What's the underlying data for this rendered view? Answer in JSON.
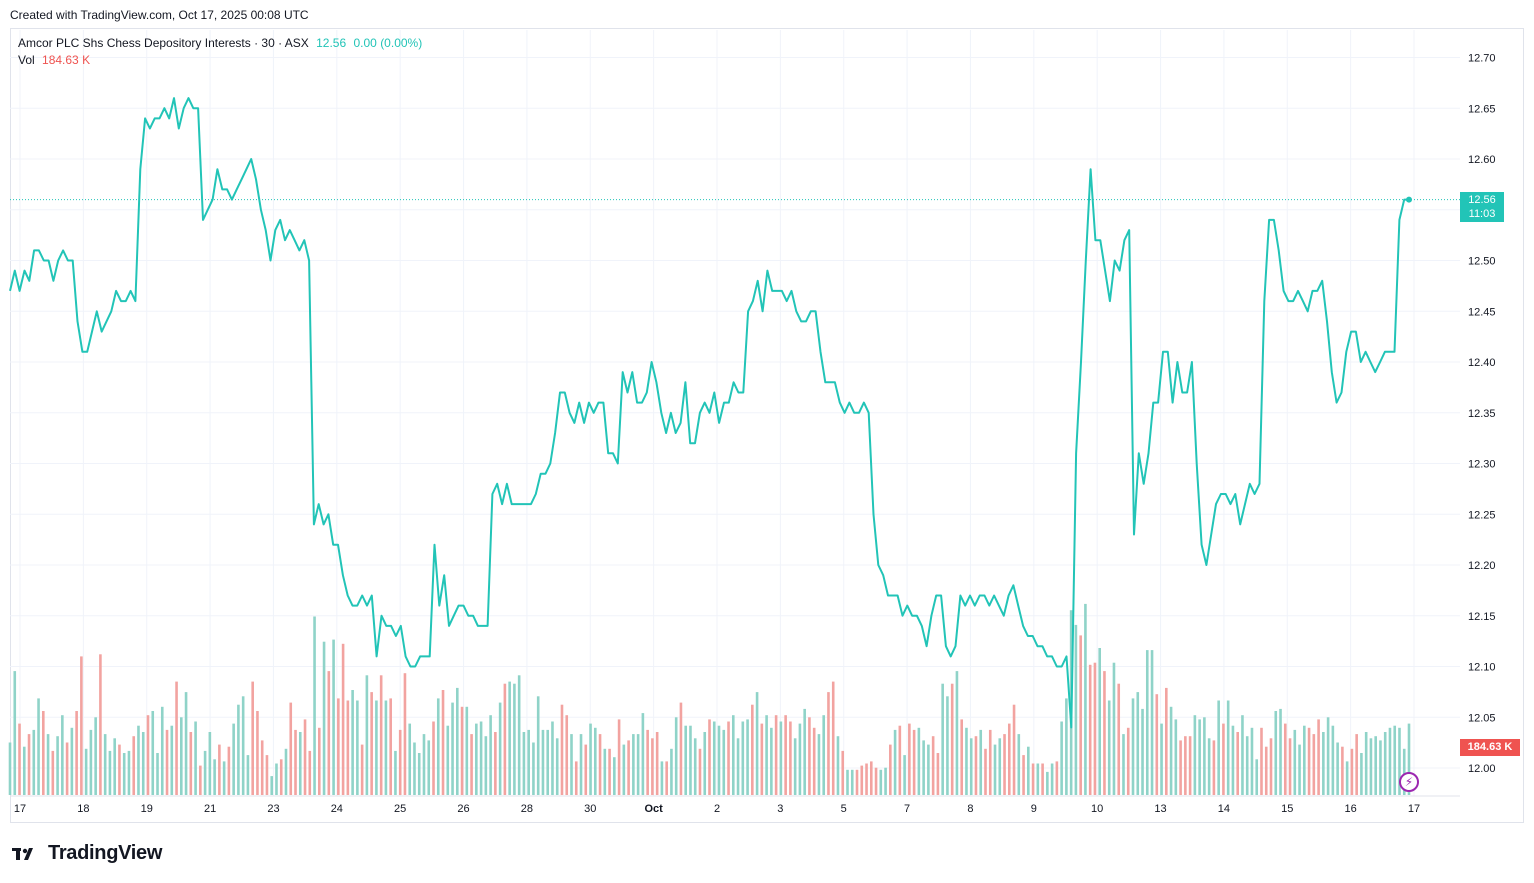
{
  "header": {
    "created_text": "Created with TradingView.com, Oct 17, 2025 00:08 UTC"
  },
  "legend": {
    "symbol": "Amcor PLC Shs Chess Depository Interests · 30 · ASX",
    "last": "12.56",
    "change": "0.00 (0.00%)",
    "vol_label": "Vol",
    "vol_value": "184.63 K"
  },
  "price_tag": {
    "price": "12.56",
    "countdown": "11:03"
  },
  "vol_tag": "184.63 K",
  "footer": {
    "brand": "TradingView"
  },
  "colors": {
    "line": "#22c4b7",
    "vol_up": "#8fd3c8",
    "vol_down": "#f2a3a0",
    "grid": "#f0f3fa",
    "text": "#131722"
  },
  "chart_data": {
    "type": "line",
    "y_axis": {
      "ticks": [
        "12.70",
        "12.65",
        "12.60",
        "12.55",
        "12.50",
        "12.45",
        "12.40",
        "12.35",
        "12.30",
        "12.25",
        "12.20",
        "12.15",
        "12.10",
        "12.05",
        "12.00"
      ],
      "ylim": [
        11.97,
        12.72
      ]
    },
    "x_axis": {
      "labels": [
        "17",
        "18",
        "19",
        "21",
        "23",
        "24",
        "25",
        "26",
        "28",
        "30",
        "Oct",
        "2",
        "3",
        "5",
        "7",
        "8",
        "9",
        "10",
        "13",
        "14",
        "15",
        "16",
        "17"
      ]
    },
    "series": [
      {
        "values": [
          12.47,
          12.49,
          12.47,
          12.49,
          12.48,
          12.51,
          12.51,
          12.5,
          12.5,
          12.48,
          12.5,
          12.51,
          12.5,
          12.5,
          12.44,
          12.41,
          12.41,
          12.43,
          12.45,
          12.43,
          12.44,
          12.45,
          12.47,
          12.46,
          12.46,
          12.47,
          12.46,
          12.59,
          12.64,
          12.63,
          12.64,
          12.64,
          12.65,
          12.64,
          12.66,
          12.63,
          12.65,
          12.66,
          12.65,
          12.65,
          12.54,
          12.55,
          12.56,
          12.59,
          12.57,
          12.57,
          12.56,
          12.57,
          12.58,
          12.59,
          12.6,
          12.58,
          12.55,
          12.53,
          12.5,
          12.53,
          12.54,
          12.52,
          12.53,
          12.52,
          12.51,
          12.52,
          12.5,
          12.24,
          12.26,
          12.24,
          12.25,
          12.22,
          12.22,
          12.19,
          12.17,
          12.16,
          12.16,
          12.17,
          12.16,
          12.17,
          12.11,
          12.15,
          12.14,
          12.14,
          12.13,
          12.14,
          12.11,
          12.1,
          12.1,
          12.11,
          12.11,
          12.11,
          12.22,
          12.16,
          12.19,
          12.14,
          12.15,
          12.16,
          12.16,
          12.15,
          12.15,
          12.14,
          12.14,
          12.14,
          12.27,
          12.28,
          12.26,
          12.28,
          12.26,
          12.26,
          12.26,
          12.26,
          12.26,
          12.27,
          12.29,
          12.29,
          12.3,
          12.33,
          12.37,
          12.37,
          12.35,
          12.34,
          12.36,
          12.34,
          12.36,
          12.35,
          12.36,
          12.36,
          12.31,
          12.31,
          12.3,
          12.39,
          12.37,
          12.39,
          12.36,
          12.36,
          12.37,
          12.4,
          12.38,
          12.35,
          12.33,
          12.35,
          12.33,
          12.34,
          12.38,
          12.32,
          12.32,
          12.35,
          12.36,
          12.35,
          12.37,
          12.34,
          12.36,
          12.36,
          12.38,
          12.37,
          12.37,
          12.45,
          12.46,
          12.48,
          12.45,
          12.49,
          12.47,
          12.47,
          12.47,
          12.46,
          12.47,
          12.45,
          12.44,
          12.44,
          12.45,
          12.45,
          12.41,
          12.38,
          12.38,
          12.38,
          12.36,
          12.35,
          12.36,
          12.35,
          12.35,
          12.36,
          12.35,
          12.25,
          12.2,
          12.19,
          12.17,
          12.17,
          12.17,
          12.15,
          12.16,
          12.15,
          12.15,
          12.14,
          12.12,
          12.15,
          12.17,
          12.17,
          12.12,
          12.11,
          12.12,
          12.17,
          12.16,
          12.17,
          12.16,
          12.17,
          12.17,
          12.16,
          12.17,
          12.16,
          12.15,
          12.17,
          12.18,
          12.16,
          12.14,
          12.13,
          12.13,
          12.12,
          12.12,
          12.11,
          12.11,
          12.1,
          12.1,
          12.11,
          12.04,
          12.31,
          12.4,
          12.5,
          12.59,
          12.52,
          12.52,
          12.49,
          12.46,
          12.5,
          12.49,
          12.52,
          12.53,
          12.23,
          12.31,
          12.28,
          12.31,
          12.36,
          12.36,
          12.41,
          12.41,
          12.36,
          12.4,
          12.37,
          12.37,
          12.4,
          12.3,
          12.22,
          12.2,
          12.23,
          12.26,
          12.27,
          12.27,
          12.26,
          12.27,
          12.24,
          12.26,
          12.28,
          12.27,
          12.28,
          12.46,
          12.54,
          12.54,
          12.51,
          12.47,
          12.46,
          12.46,
          12.47,
          12.46,
          12.45,
          12.47,
          12.47,
          12.48,
          12.44,
          12.39,
          12.36,
          12.37,
          12.41,
          12.43,
          12.43,
          12.4,
          12.41,
          12.4,
          12.39,
          12.4,
          12.41,
          12.41,
          12.41,
          12.54,
          12.56,
          12.56
        ]
      }
    ],
    "volume": {
      "values": [
        0.25,
        0.59,
        0.34,
        0.23,
        0.29,
        0.31,
        0.46,
        0.4,
        0.29,
        0.21,
        0.28,
        0.38,
        0.25,
        0.32,
        0.4,
        0.66,
        0.22,
        0.31,
        0.37,
        0.67,
        0.29,
        0.21,
        0.27,
        0.24,
        0.2,
        0.21,
        0.28,
        0.33,
        0.3,
        0.38,
        0.4,
        0.2,
        0.42,
        0.31,
        0.33,
        0.54,
        0.37,
        0.49,
        0.3,
        0.35,
        0.14,
        0.21,
        0.3,
        0.17,
        0.24,
        0.16,
        0.23,
        0.34,
        0.43,
        0.47,
        0.19,
        0.54,
        0.4,
        0.26,
        0.19,
        0.09,
        0.15,
        0.17,
        0.22,
        0.44,
        0.31,
        0.3,
        0.36,
        0.21,
        0.85,
        0.32,
        0.73,
        0.59,
        0.74,
        0.46,
        0.72,
        0.45,
        0.5,
        0.45,
        0.24,
        0.57,
        0.49,
        0.45,
        0.57,
        0.45,
        0.46,
        0.21,
        0.31,
        0.58,
        0.34,
        0.25,
        0.2,
        0.29,
        0.26,
        0.35,
        0.46,
        0.5,
        0.33,
        0.44,
        0.51,
        0.42,
        0.42,
        0.29,
        0.34,
        0.35,
        0.28,
        0.38,
        0.3,
        0.44,
        0.53,
        0.54,
        0.53,
        0.57,
        0.3,
        0.31,
        0.25,
        0.47,
        0.31,
        0.31,
        0.35,
        0.27,
        0.43,
        0.38,
        0.29,
        0.16,
        0.29,
        0.24,
        0.34,
        0.32,
        0.29,
        0.22,
        0.22,
        0.18,
        0.36,
        0.24,
        0.26,
        0.29,
        0.29,
        0.39,
        0.31,
        0.27,
        0.3,
        0.16,
        0.16,
        0.22,
        0.37,
        0.44,
        0.33,
        0.33,
        0.27,
        0.22,
        0.3,
        0.36,
        0.35,
        0.33,
        0.31,
        0.35,
        0.38,
        0.27,
        0.35,
        0.36,
        0.43,
        0.49,
        0.34,
        0.38,
        0.32,
        0.38,
        0.35,
        0.38,
        0.35,
        0.27,
        0.34,
        0.41,
        0.37,
        0.32,
        0.29,
        0.38,
        0.49,
        0.54,
        0.28,
        0.21,
        0.12,
        0.12,
        0.12,
        0.14,
        0.15,
        0.16,
        0.13,
        0.12,
        0.13,
        0.24,
        0.31,
        0.33,
        0.19,
        0.34,
        0.31,
        0.32,
        0.26,
        0.24,
        0.28,
        0.2,
        0.53,
        0.47,
        0.53,
        0.59,
        0.36,
        0.32,
        0.27,
        0.28,
        0.31,
        0.22,
        0.31,
        0.24,
        0.27,
        0.29,
        0.34,
        0.43,
        0.29,
        0.19,
        0.23,
        0.15,
        0.15,
        0.15,
        0.11,
        0.15,
        0.16,
        0.35,
        0.46,
        0.88,
        0.81,
        0.76,
        0.91,
        0.62,
        0.63,
        0.7,
        0.59,
        0.45,
        0.63,
        0.53,
        0.29,
        0.32,
        0.46,
        0.49,
        0.41,
        0.69,
        0.69,
        0.48,
        0.34,
        0.51,
        0.42,
        0.36,
        0.26,
        0.28,
        0.28,
        0.38,
        0.36,
        0.37,
        0.27,
        0.26,
        0.45,
        0.34,
        0.45,
        0.33,
        0.3,
        0.38,
        0.28,
        0.32,
        0.17,
        0.32,
        0.23,
        0.27,
        0.4,
        0.41,
        0.34,
        0.27,
        0.31,
        0.24,
        0.33,
        0.32,
        0.29,
        0.36,
        0.3,
        0.37,
        0.33,
        0.25,
        0.23,
        0.16,
        0.22,
        0.29,
        0.2,
        0.3,
        0.27,
        0.28,
        0.26,
        0.3,
        0.32,
        0.33,
        0.32,
        0.22,
        0.34
      ]
    }
  }
}
